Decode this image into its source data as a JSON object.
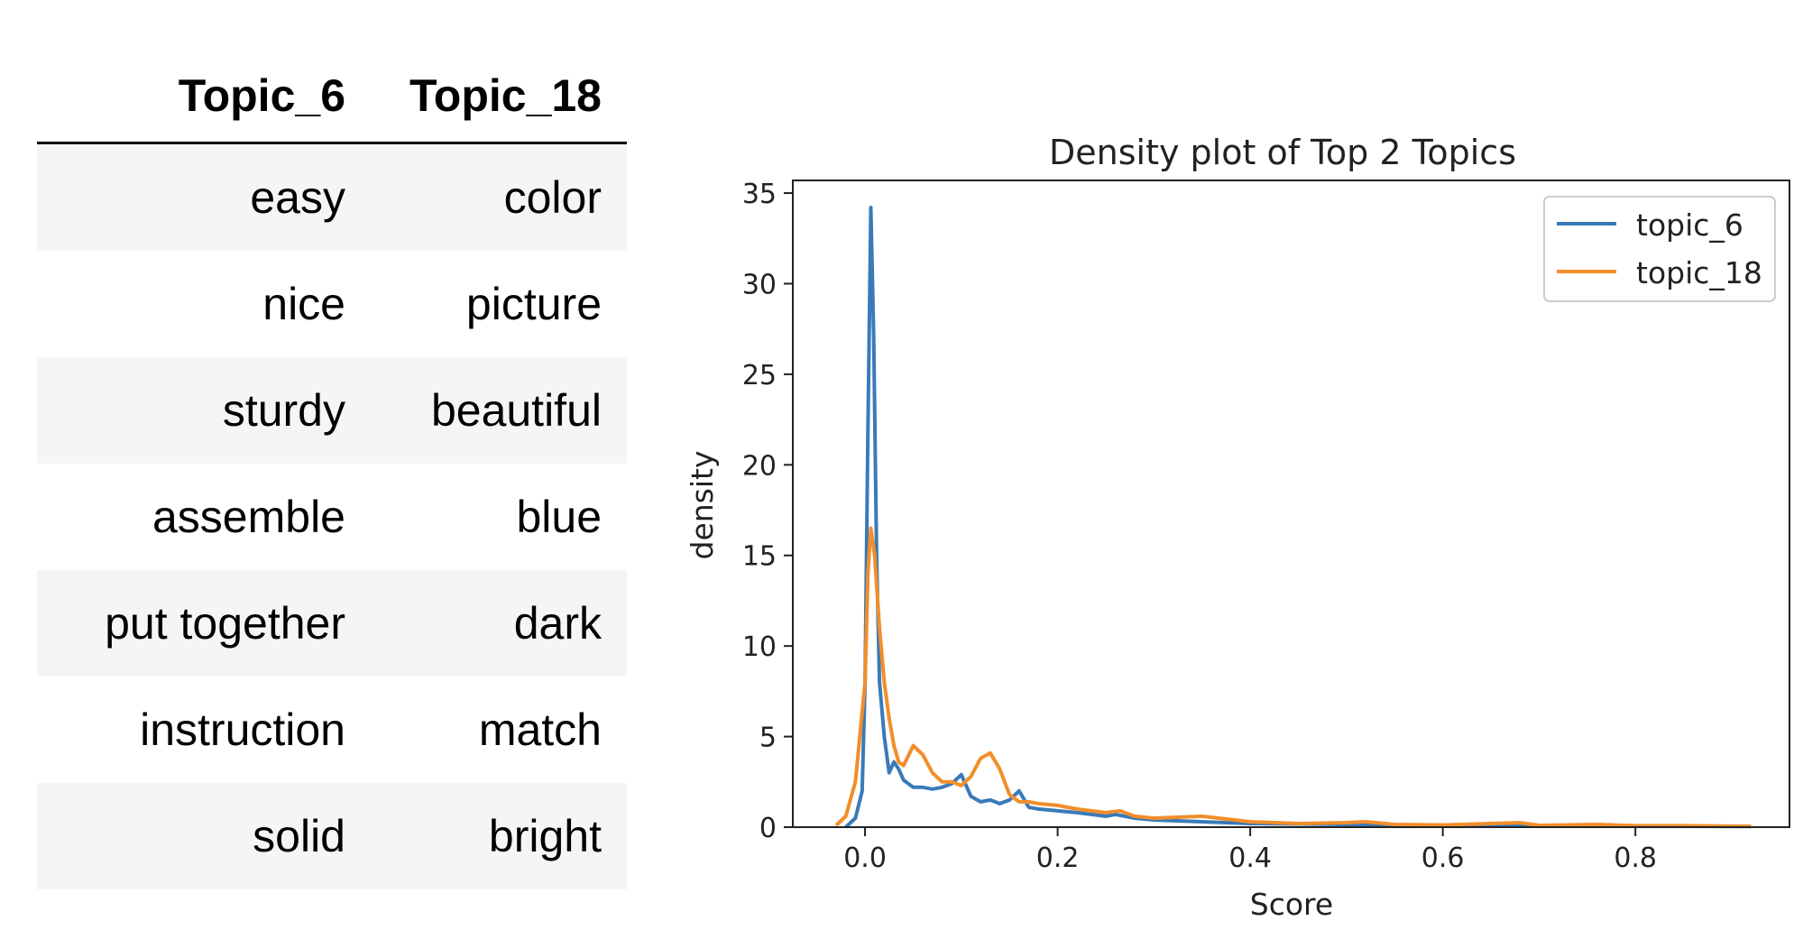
{
  "table": {
    "headers": [
      "Topic_6",
      "Topic_18"
    ],
    "rows": [
      [
        "easy",
        "color"
      ],
      [
        "nice",
        "picture"
      ],
      [
        "sturdy",
        "beautiful"
      ],
      [
        "assemble",
        "blue"
      ],
      [
        "put together",
        "dark"
      ],
      [
        "instruction",
        "match"
      ],
      [
        "solid",
        "bright"
      ]
    ]
  },
  "chart_data": {
    "type": "line",
    "title": "Density plot of Top 2 Topics",
    "xlabel": "Score",
    "ylabel": "density",
    "xlim": [
      -0.075,
      0.96
    ],
    "ylim": [
      0,
      35.7
    ],
    "xticks": [
      0.0,
      0.2,
      0.4,
      0.6,
      0.8
    ],
    "xtick_labels": [
      "0.0",
      "0.2",
      "0.4",
      "0.6",
      "0.8"
    ],
    "yticks": [
      0,
      5,
      10,
      15,
      20,
      25,
      30,
      35
    ],
    "ytick_labels": [
      "0",
      "5",
      "10",
      "15",
      "20",
      "25",
      "30",
      "35"
    ],
    "grid": false,
    "legend_position": "top-right",
    "series": [
      {
        "name": "topic_6",
        "color": "#3a7ab8",
        "x": [
          -0.02,
          -0.01,
          -0.003,
          0.0,
          0.003,
          0.006,
          0.009,
          0.012,
          0.015,
          0.02,
          0.025,
          0.03,
          0.035,
          0.04,
          0.05,
          0.06,
          0.07,
          0.08,
          0.09,
          0.1,
          0.11,
          0.12,
          0.13,
          0.14,
          0.15,
          0.16,
          0.17,
          0.18,
          0.2,
          0.22,
          0.25,
          0.26,
          0.28,
          0.3,
          0.35,
          0.4,
          0.5,
          0.6,
          0.7,
          0.8,
          0.92
        ],
        "y": [
          0,
          0.5,
          2.0,
          8.0,
          22.0,
          34.2,
          27.0,
          15.0,
          8.0,
          5.0,
          3.0,
          3.6,
          3.2,
          2.6,
          2.2,
          2.2,
          2.1,
          2.2,
          2.4,
          2.9,
          1.7,
          1.4,
          1.5,
          1.3,
          1.5,
          2.0,
          1.1,
          1.0,
          0.9,
          0.8,
          0.6,
          0.7,
          0.5,
          0.4,
          0.3,
          0.2,
          0.15,
          0.1,
          0.08,
          0.06,
          0.04
        ]
      },
      {
        "name": "topic_18",
        "color": "#f28e2b",
        "x": [
          -0.03,
          -0.02,
          -0.01,
          0.0,
          0.003,
          0.006,
          0.01,
          0.015,
          0.02,
          0.025,
          0.03,
          0.035,
          0.04,
          0.05,
          0.06,
          0.07,
          0.08,
          0.09,
          0.1,
          0.11,
          0.12,
          0.13,
          0.14,
          0.15,
          0.16,
          0.17,
          0.18,
          0.2,
          0.22,
          0.25,
          0.265,
          0.28,
          0.3,
          0.35,
          0.4,
          0.45,
          0.5,
          0.52,
          0.55,
          0.6,
          0.68,
          0.7,
          0.76,
          0.8,
          0.85,
          0.92
        ],
        "y": [
          0.1,
          0.6,
          2.5,
          8.0,
          14.0,
          16.5,
          15.0,
          11.0,
          8.0,
          6.0,
          4.5,
          3.6,
          3.4,
          4.5,
          4.0,
          3.0,
          2.5,
          2.5,
          2.3,
          2.8,
          3.8,
          4.1,
          3.2,
          1.8,
          1.4,
          1.4,
          1.3,
          1.2,
          1.0,
          0.8,
          0.9,
          0.6,
          0.5,
          0.6,
          0.3,
          0.2,
          0.25,
          0.3,
          0.15,
          0.12,
          0.25,
          0.1,
          0.15,
          0.08,
          0.08,
          0.05
        ]
      }
    ]
  }
}
